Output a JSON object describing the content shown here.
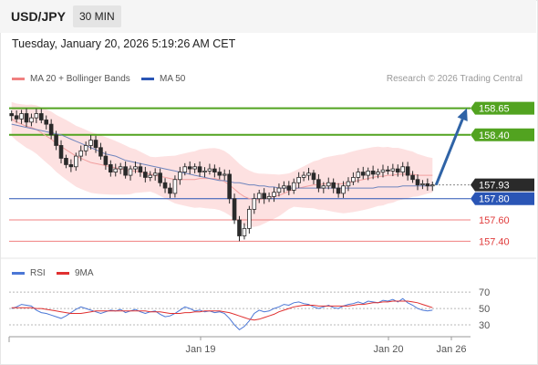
{
  "header": {
    "symbol": "USD/JPY",
    "timeframe": "30 MIN"
  },
  "datetime": "Tuesday, January 20, 2026 5:19:26 AM CET",
  "legend": {
    "ma20_bb": "MA 20 + Bollinger Bands",
    "ma50": "MA 50",
    "credit": "Research © 2026 Trading Central",
    "rsi": "RSI",
    "ma9": "9MA"
  },
  "colors": {
    "candle_up": "#2a2a2a",
    "candle_down": "#2a2a2a",
    "resistance": "#52a320",
    "pivot": "#2a55b5",
    "support": "#f08080",
    "ma20": "#f2a0a0",
    "bollinger_fill": "#fde1e1",
    "ma50": "#6f85bd",
    "arrow": "#2f63a6",
    "rsi": "#4b77d6",
    "rsi_ma": "#e03030",
    "last_price": "#2a2a2a"
  },
  "chart_data": [
    {
      "type": "candlestick",
      "title": "USD/JPY 30 MIN",
      "x_labels": [
        "Jan 19",
        "Jan 20",
        "Jan 26"
      ],
      "ylim": [
        157.3,
        158.75
      ],
      "last_price": 157.93,
      "levels": [
        {
          "value": 158.65,
          "label": "158.65",
          "kind": "resistance"
        },
        {
          "value": 158.4,
          "label": "158.40",
          "kind": "resistance"
        },
        {
          "value": 157.93,
          "label": "157.93",
          "kind": "last"
        },
        {
          "value": 157.8,
          "label": "157.80",
          "kind": "pivot"
        },
        {
          "value": 157.6,
          "label": "157.60",
          "kind": "support"
        },
        {
          "value": 157.4,
          "label": "157.40",
          "kind": "support"
        }
      ],
      "arrow": {
        "from": 157.93,
        "to": 158.65
      },
      "series_close": [
        158.58,
        158.55,
        158.6,
        158.52,
        158.56,
        158.6,
        158.54,
        158.5,
        158.4,
        158.3,
        158.18,
        158.12,
        158.1,
        158.2,
        158.25,
        158.3,
        158.35,
        158.28,
        158.2,
        158.12,
        158.05,
        158.08,
        158.1,
        158.02,
        158.08,
        158.1,
        158.05,
        158.0,
        158.02,
        158.04,
        157.95,
        157.9,
        157.85,
        157.98,
        158.05,
        158.1,
        158.08,
        158.1,
        158.05,
        158.06,
        158.08,
        158.05,
        158.02,
        158.03,
        157.8,
        157.6,
        157.45,
        157.52,
        157.7,
        157.8,
        157.85,
        157.8,
        157.82,
        157.86,
        157.9,
        157.92,
        157.88,
        157.95,
        158.0,
        158.02,
        158.04,
        157.98,
        157.9,
        157.92,
        157.95,
        157.9,
        157.85,
        157.92,
        157.96,
        158.0,
        158.05,
        158.02,
        158.06,
        158.03,
        158.05,
        158.07,
        158.06,
        158.08,
        158.05,
        158.1,
        158.02,
        157.98,
        157.93,
        157.94,
        157.92,
        157.93
      ],
      "ma20": [
        158.55,
        158.52,
        158.5,
        158.48,
        158.47,
        158.45,
        158.42,
        158.39,
        158.36,
        158.32,
        158.29,
        158.26,
        158.23,
        158.2,
        158.18,
        158.16,
        158.14,
        158.13,
        158.12,
        158.11,
        158.1,
        158.09,
        158.08,
        158.07,
        158.06,
        158.06,
        158.05,
        158.04,
        158.03,
        158.02,
        158.01,
        158.0,
        157.99,
        157.98,
        157.98,
        157.98,
        157.98,
        157.98,
        157.99,
        157.99,
        157.99,
        157.99,
        157.98,
        157.96,
        157.93,
        157.89,
        157.85,
        157.82,
        157.8,
        157.79,
        157.79,
        157.8,
        157.81,
        157.82,
        157.83,
        157.85,
        157.87,
        157.89,
        157.9,
        157.91,
        157.92,
        157.93,
        157.93,
        157.94,
        157.94,
        157.94,
        157.94,
        157.94,
        157.95,
        157.96,
        157.97,
        157.98,
        157.99,
        158.0,
        158.01,
        158.01,
        158.02,
        158.02,
        158.03,
        158.03,
        158.03,
        158.03,
        158.02,
        158.02,
        158.02,
        158.02
      ],
      "ma50": [
        158.5,
        158.49,
        158.48,
        158.47,
        158.46,
        158.45,
        158.44,
        158.43,
        158.42,
        158.41,
        158.4,
        158.38,
        158.36,
        158.34,
        158.32,
        158.3,
        158.28,
        158.26,
        158.24,
        158.22,
        158.21,
        158.2,
        158.18,
        158.16,
        158.15,
        158.14,
        158.13,
        158.12,
        158.11,
        158.1,
        158.09,
        158.08,
        158.07,
        158.06,
        158.05,
        158.04,
        158.03,
        158.02,
        158.01,
        158.0,
        157.99,
        157.98,
        157.97,
        157.97,
        157.96,
        157.95,
        157.95,
        157.94,
        157.93,
        157.93,
        157.92,
        157.92,
        157.91,
        157.91,
        157.9,
        157.9,
        157.9,
        157.9,
        157.9,
        157.9,
        157.9,
        157.9,
        157.9,
        157.9,
        157.9,
        157.9,
        157.9,
        157.9,
        157.9,
        157.9,
        157.9,
        157.9,
        157.9,
        157.9,
        157.91,
        157.91,
        157.91,
        157.91,
        157.91,
        157.92,
        157.92,
        157.92,
        157.92,
        157.92,
        157.92,
        157.92
      ],
      "boll_width": 0.16
    },
    {
      "type": "line",
      "title": "RSI",
      "y_ticks": [
        70,
        50,
        30
      ],
      "ylim": [
        20,
        78
      ],
      "series": [
        {
          "name": "RSI",
          "values": [
            50,
            52,
            55,
            54,
            53,
            48,
            45,
            44,
            42,
            40,
            38,
            41,
            45,
            49,
            52,
            50,
            48,
            46,
            44,
            46,
            48,
            47,
            49,
            45,
            47,
            49,
            46,
            44,
            46,
            47,
            43,
            40,
            41,
            44,
            48,
            52,
            50,
            47,
            48,
            46,
            47,
            45,
            46,
            44,
            38,
            30,
            24,
            28,
            35,
            44,
            48,
            46,
            47,
            50,
            52,
            55,
            54,
            57,
            58,
            56,
            55,
            52,
            50,
            52,
            54,
            51,
            50,
            53,
            55,
            56,
            58,
            56,
            59,
            58,
            57,
            60,
            59,
            61,
            58,
            62,
            57,
            54,
            50,
            48,
            47,
            48
          ]
        },
        {
          "name": "9MA",
          "values": [
            51,
            51,
            51,
            51,
            51,
            50,
            50,
            49,
            48,
            47,
            46,
            45,
            44,
            44,
            44,
            45,
            46,
            47,
            47,
            47,
            47,
            47,
            47,
            47,
            47,
            47,
            47,
            47,
            46,
            46,
            46,
            45,
            44,
            44,
            44,
            45,
            45,
            46,
            46,
            47,
            47,
            47,
            47,
            46,
            45,
            43,
            41,
            39,
            37,
            36,
            37,
            39,
            41,
            43,
            46,
            48,
            50,
            52,
            53,
            54,
            54,
            54,
            53,
            53,
            53,
            53,
            53,
            53,
            53,
            54,
            55,
            55,
            56,
            57,
            57,
            58,
            58,
            59,
            59,
            59,
            59,
            58,
            57,
            55,
            53,
            51
          ]
        }
      ]
    }
  ]
}
